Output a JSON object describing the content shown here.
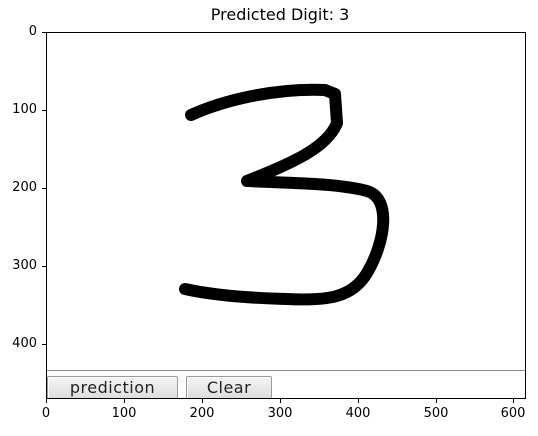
{
  "figure": {
    "title": "Predicted Digit: 3",
    "yticks": [
      "0",
      "100",
      "200",
      "300",
      "400"
    ],
    "xticks": [
      "0",
      "100",
      "200",
      "300",
      "400",
      "500",
      "600"
    ]
  },
  "canvas": {
    "drawn_digit": "3"
  },
  "buttons": {
    "prediction_label": "prediction",
    "clear_label": "Clear"
  }
}
